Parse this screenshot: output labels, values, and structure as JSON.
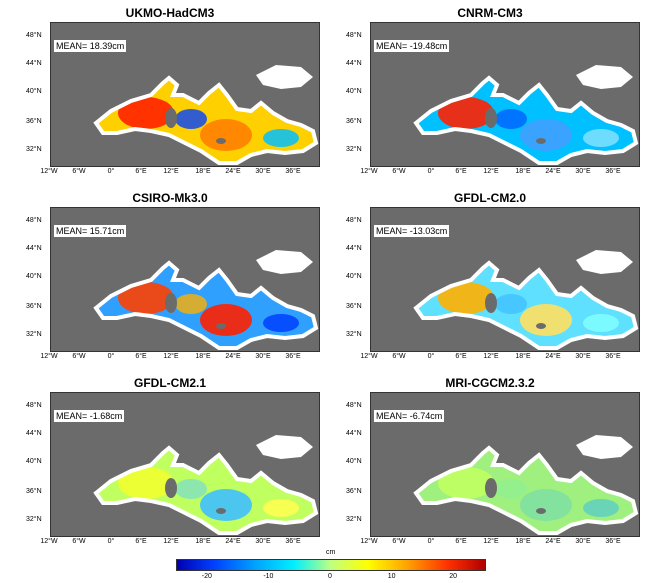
{
  "panels": [
    {
      "title": "UKMO-HadCM3",
      "mean": "MEAN= 18.39cm",
      "sea": "#ffd000",
      "hot": [
        "#ff2000",
        "#ff8000",
        "#0040ff",
        "#00c0ff"
      ]
    },
    {
      "title": "CNRM-CM3",
      "mean": "MEAN= -19.48cm",
      "sea": "#00c0ff",
      "hot": [
        "#ff2000",
        "#40a0ff",
        "#0060ff",
        "#80e0ff"
      ]
    },
    {
      "title": "CSIRO-Mk3.0",
      "mean": "MEAN= 15.71cm",
      "sea": "#30a0ff",
      "hot": [
        "#ff4000",
        "#ff2000",
        "#ffb000",
        "#0040ff"
      ]
    },
    {
      "title": "GFDL-CM2.0",
      "mean": "MEAN= -13.03cm",
      "sea": "#60e0ff",
      "hot": [
        "#ffb000",
        "#ffe060",
        "#40c0ff",
        "#80ffff"
      ]
    },
    {
      "title": "GFDL-CM2.1",
      "mean": "MEAN= -1.68cm",
      "sea": "#c0ff60",
      "hot": [
        "#f0ff30",
        "#40c0ff",
        "#80e0c0",
        "#ffff50"
      ]
    },
    {
      "title": "MRI-CGCM2.3.2",
      "mean": "MEAN= -6.74cm",
      "sea": "#a0f080",
      "hot": [
        "#c0ff60",
        "#80e0a0",
        "#90f090",
        "#60d0c0"
      ]
    }
  ],
  "lat_labels": [
    "48°N",
    "44°N",
    "40°N",
    "36°N",
    "32°N"
  ],
  "lon_labels": [
    "12°W",
    "6°W",
    "0°",
    "6°E",
    "12°E",
    "18°E",
    "24°E",
    "30°E",
    "36°E"
  ],
  "colorbar": {
    "unit": "cm",
    "ticks": [
      "-20",
      "-10",
      "0",
      "10",
      "20"
    ],
    "min": -25,
    "max": 25
  },
  "colors": {
    "land": "#6b6b6b",
    "ocean_border": "#333333"
  }
}
